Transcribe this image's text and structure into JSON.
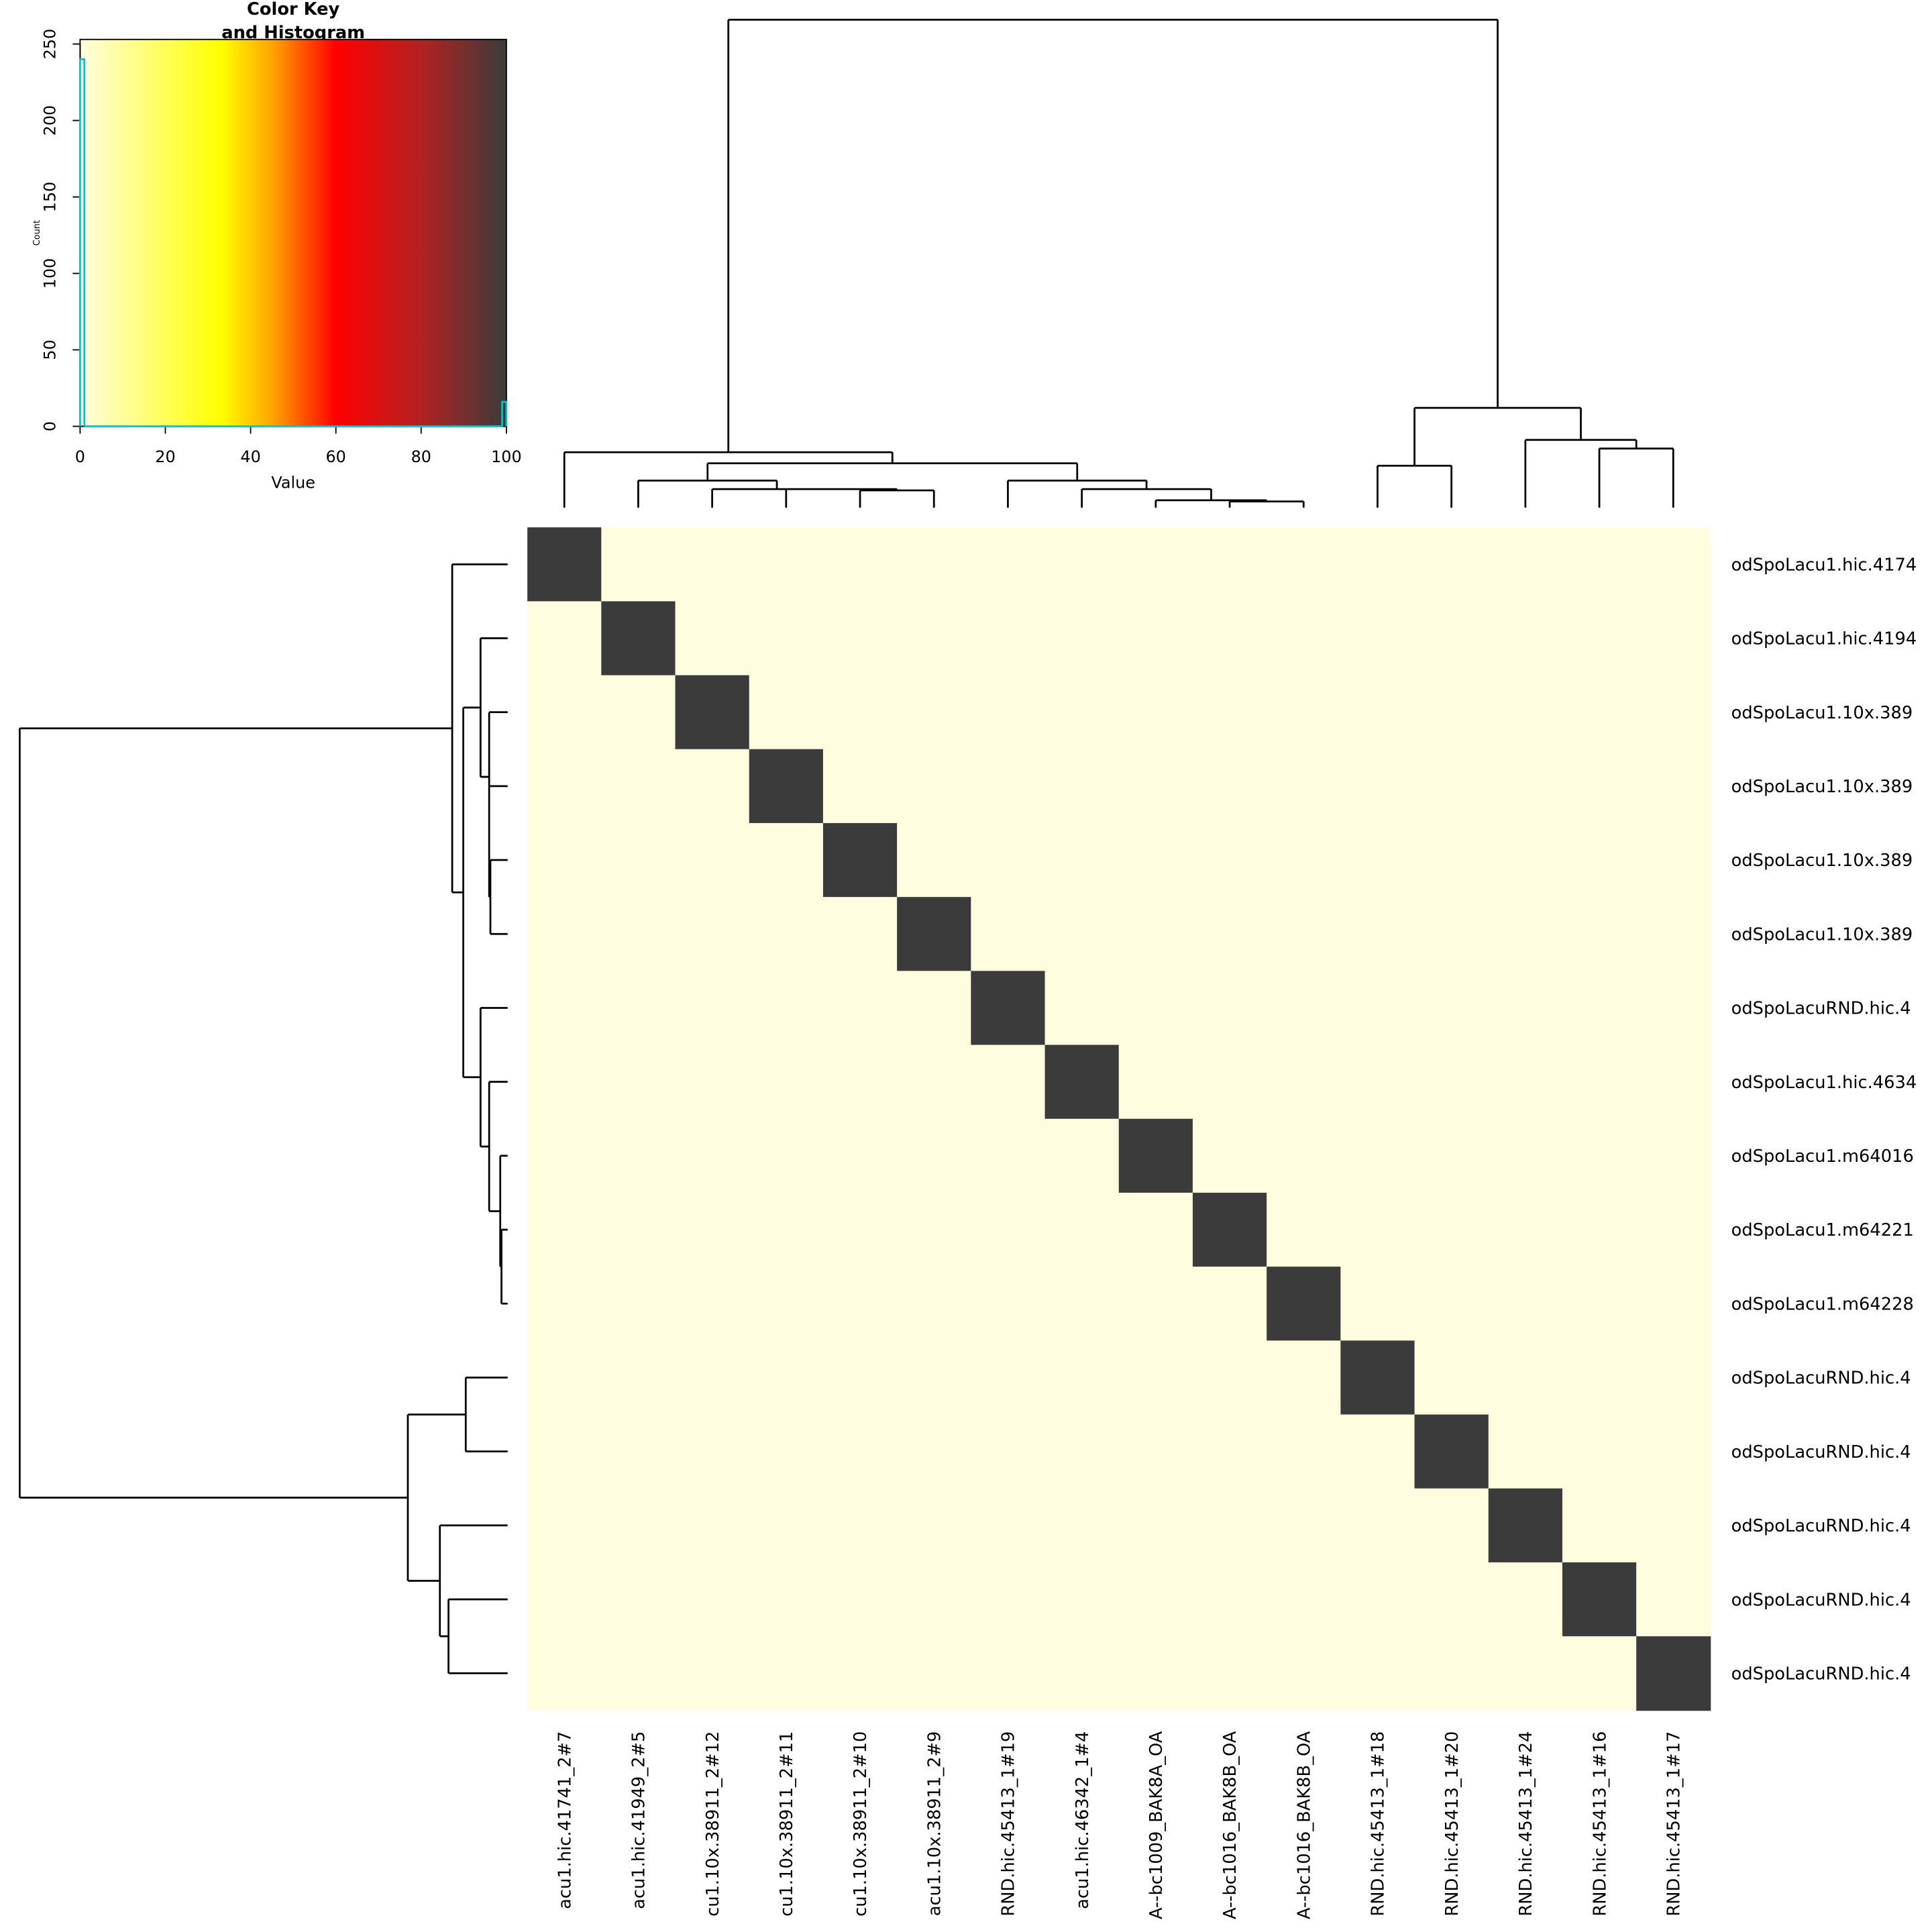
{
  "chart_data": {
    "type": "heatmap",
    "key": {
      "title_lines": [
        "Color Key",
        "and Histogram"
      ],
      "xlabel": "Value",
      "ylabel": "Count",
      "xlim": [
        0,
        100
      ],
      "xticks": [
        0,
        20,
        40,
        60,
        80,
        100
      ],
      "ylim": [
        0,
        253
      ],
      "yticks": [
        0,
        50,
        100,
        150,
        200,
        250
      ],
      "histogram": {
        "bins": [
          0,
          1,
          99,
          100
        ],
        "counts": [
          240,
          0,
          16
        ],
        "color": "#00c5cd"
      }
    },
    "colorscale": [
      {
        "value": 0,
        "color": "#fffde0"
      },
      {
        "value": 33,
        "color": "#ffff00"
      },
      {
        "value": 45,
        "color": "#ffa500"
      },
      {
        "value": 60,
        "color": "#ff0000"
      },
      {
        "value": 80,
        "color": "#b22222"
      },
      {
        "value": 100,
        "color": "#3b3b3b"
      }
    ],
    "row_labels": [
      "odSpoLacu1.hic.4174",
      "odSpoLacu1.hic.4194",
      "odSpoLacu1.10x.389",
      "odSpoLacu1.10x.389",
      "odSpoLacu1.10x.389",
      "odSpoLacu1.10x.389",
      "odSpoLacuRND.hic.4",
      "odSpoLacu1.hic.4634",
      "odSpoLacu1.m64016",
      "odSpoLacu1.m64221",
      "odSpoLacu1.m64228",
      "odSpoLacuRND.hic.4",
      "odSpoLacuRND.hic.4",
      "odSpoLacuRND.hic.4",
      "odSpoLacuRND.hic.4",
      "odSpoLacuRND.hic.4"
    ],
    "col_labels": [
      "acu1.hic.41741_2#7",
      "acu1.hic.41949_2#5",
      "cu1.10x.38911_2#12",
      "cu1.10x.38911_2#11",
      "cu1.10x.38911_2#10",
      "acu1.10x.38911_2#9",
      "RND.hic.45413_1#19",
      "acu1.hic.46342_1#4",
      "A--bc1009_BAK8A_OA",
      "A--bc1016_BAK8B_OA",
      "A--bc1016_BAK8B_OA",
      "RND.hic.45413_1#18",
      "RND.hic.45413_1#20",
      "RND.hic.45413_1#24",
      "RND.hic.45413_1#16",
      "RND.hic.45413_1#17"
    ],
    "values": [
      [
        100,
        0,
        0,
        0,
        0,
        0,
        0,
        0,
        0,
        0,
        0,
        0,
        0,
        0,
        0,
        0
      ],
      [
        0,
        100,
        0,
        0,
        0,
        0,
        0,
        0,
        0,
        0,
        0,
        0,
        0,
        0,
        0,
        0
      ],
      [
        0,
        0,
        100,
        0,
        0,
        0,
        0,
        0,
        0,
        0,
        0,
        0,
        0,
        0,
        0,
        0
      ],
      [
        0,
        0,
        0,
        100,
        0,
        0,
        0,
        0,
        0,
        0,
        0,
        0,
        0,
        0,
        0,
        0
      ],
      [
        0,
        0,
        0,
        0,
        100,
        0,
        0,
        0,
        0,
        0,
        0,
        0,
        0,
        0,
        0,
        0
      ],
      [
        0,
        0,
        0,
        0,
        0,
        100,
        0,
        0,
        0,
        0,
        0,
        0,
        0,
        0,
        0,
        0
      ],
      [
        0,
        0,
        0,
        0,
        0,
        0,
        100,
        0,
        0,
        0,
        0,
        0,
        0,
        0,
        0,
        0
      ],
      [
        0,
        0,
        0,
        0,
        0,
        0,
        0,
        100,
        0,
        0,
        0,
        0,
        0,
        0,
        0,
        0
      ],
      [
        0,
        0,
        0,
        0,
        0,
        0,
        0,
        0,
        100,
        0,
        0,
        0,
        0,
        0,
        0,
        0
      ],
      [
        0,
        0,
        0,
        0,
        0,
        0,
        0,
        0,
        0,
        100,
        0,
        0,
        0,
        0,
        0,
        0
      ],
      [
        0,
        0,
        0,
        0,
        0,
        0,
        0,
        0,
        0,
        0,
        100,
        0,
        0,
        0,
        0,
        0
      ],
      [
        0,
        0,
        0,
        0,
        0,
        0,
        0,
        0,
        0,
        0,
        0,
        100,
        0,
        0,
        0,
        0
      ],
      [
        0,
        0,
        0,
        0,
        0,
        0,
        0,
        0,
        0,
        0,
        0,
        0,
        100,
        0,
        0,
        0
      ],
      [
        0,
        0,
        0,
        0,
        0,
        0,
        0,
        0,
        0,
        0,
        0,
        0,
        0,
        100,
        0,
        0
      ],
      [
        0,
        0,
        0,
        0,
        0,
        0,
        0,
        0,
        0,
        0,
        0,
        0,
        0,
        0,
        100,
        0
      ],
      [
        0,
        0,
        0,
        0,
        0,
        0,
        0,
        0,
        0,
        0,
        0,
        0,
        0,
        0,
        0,
        100
      ]
    ]
  }
}
